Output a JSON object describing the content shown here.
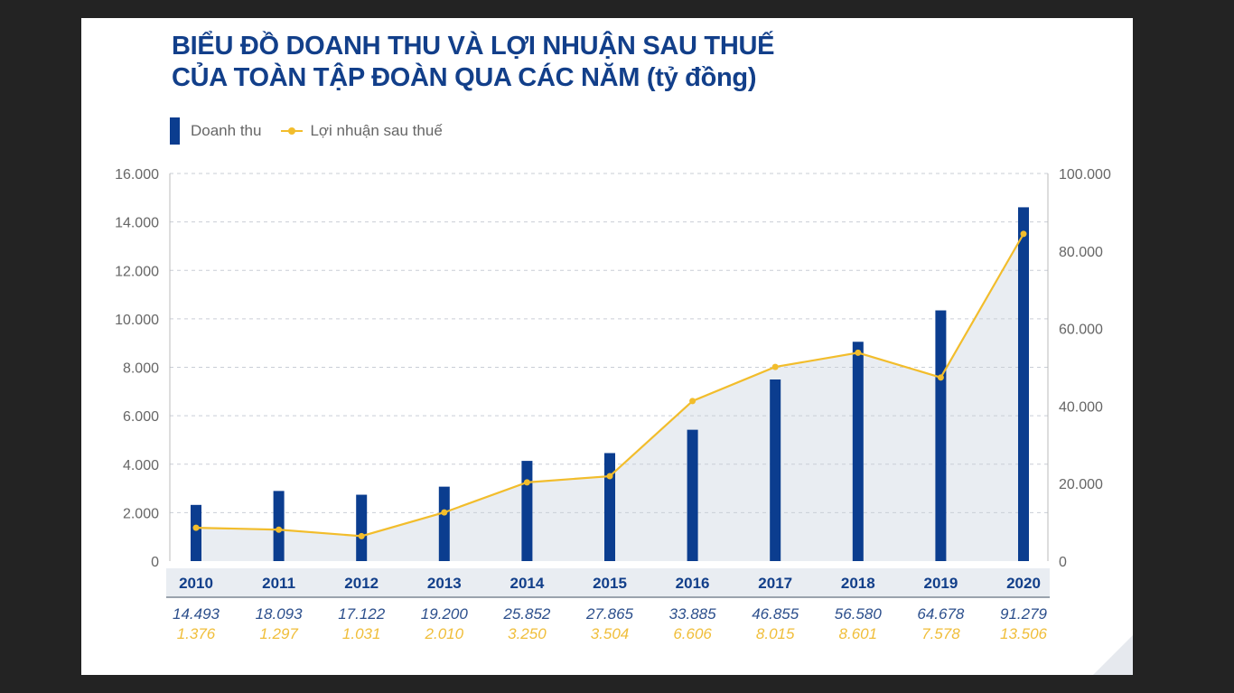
{
  "chart_data": {
    "type": "bar+line",
    "title_line1": "BIỂU ĐỒ DOANH THU VÀ LỢI NHUẬN SAU THUẾ",
    "title_line2": "CỦA TOÀN TẬP ĐOÀN QUA CÁC NĂM (tỷ đồng)",
    "categories": [
      "2010",
      "2011",
      "2012",
      "2013",
      "2014",
      "2015",
      "2016",
      "2017",
      "2018",
      "2019",
      "2020"
    ],
    "series": [
      {
        "name": "Doanh thu",
        "type": "bar",
        "axis": "right",
        "color": "#0b3d8f",
        "values": [
          14493,
          18093,
          17122,
          19200,
          25852,
          27865,
          33885,
          46855,
          56580,
          64678,
          91279
        ],
        "labels": [
          "14.493",
          "18.093",
          "17.122",
          "19.200",
          "25.852",
          "27.865",
          "33.885",
          "46.855",
          "56.580",
          "64.678",
          "91.279"
        ]
      },
      {
        "name": "Lợi nhuận sau thuế",
        "type": "line",
        "axis": "left",
        "color": "#f2bd2c",
        "values": [
          1376,
          1297,
          1031,
          2010,
          3250,
          3504,
          6606,
          8015,
          8601,
          7578,
          13506
        ],
        "labels": [
          "1.376",
          "1.297",
          "1.031",
          "2.010",
          "3.250",
          "3.504",
          "6.606",
          "8.015",
          "8.601",
          "7.578",
          "13.506"
        ]
      }
    ],
    "left_axis": {
      "range": [
        0,
        16000
      ],
      "ticks": [
        "0",
        "2.000",
        "4.000",
        "6.000",
        "8.000",
        "10.000",
        "12.000",
        "14.000",
        "16.000"
      ]
    },
    "right_axis": {
      "range": [
        0,
        100000
      ],
      "ticks": [
        "0",
        "20.000",
        "40.000",
        "60.000",
        "80.000",
        "100.000"
      ]
    },
    "grid": "horizontal dashed",
    "legend": "top-left",
    "area_under_line": true
  }
}
